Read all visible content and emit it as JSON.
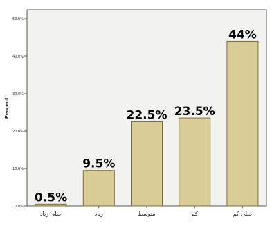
{
  "chart_data": {
    "type": "bar",
    "categories": [
      "خیلی زیاد",
      "زیاد",
      "متوسط",
      "کم",
      "خیلی کم"
    ],
    "values": [
      0.5,
      9.5,
      22.5,
      23.5,
      44
    ],
    "data_labels": [
      "0.5%",
      "9.5%",
      "22.5%",
      "23.5%",
      "44%"
    ],
    "ylabel": "Percent",
    "yticks": [
      0,
      10,
      20,
      30,
      40,
      50
    ],
    "ytick_labels": [
      "0.0%",
      "10.0%",
      "20.0%",
      "30.0%",
      "40.0%",
      "50.0%"
    ],
    "ylim": [
      0,
      50
    ],
    "grid": false,
    "colors": {
      "bar_fill": "#d9cc96",
      "bar_stroke": "#7a6e3a",
      "plot_background": "#f2f2ee",
      "plot_border": "#555555"
    }
  }
}
